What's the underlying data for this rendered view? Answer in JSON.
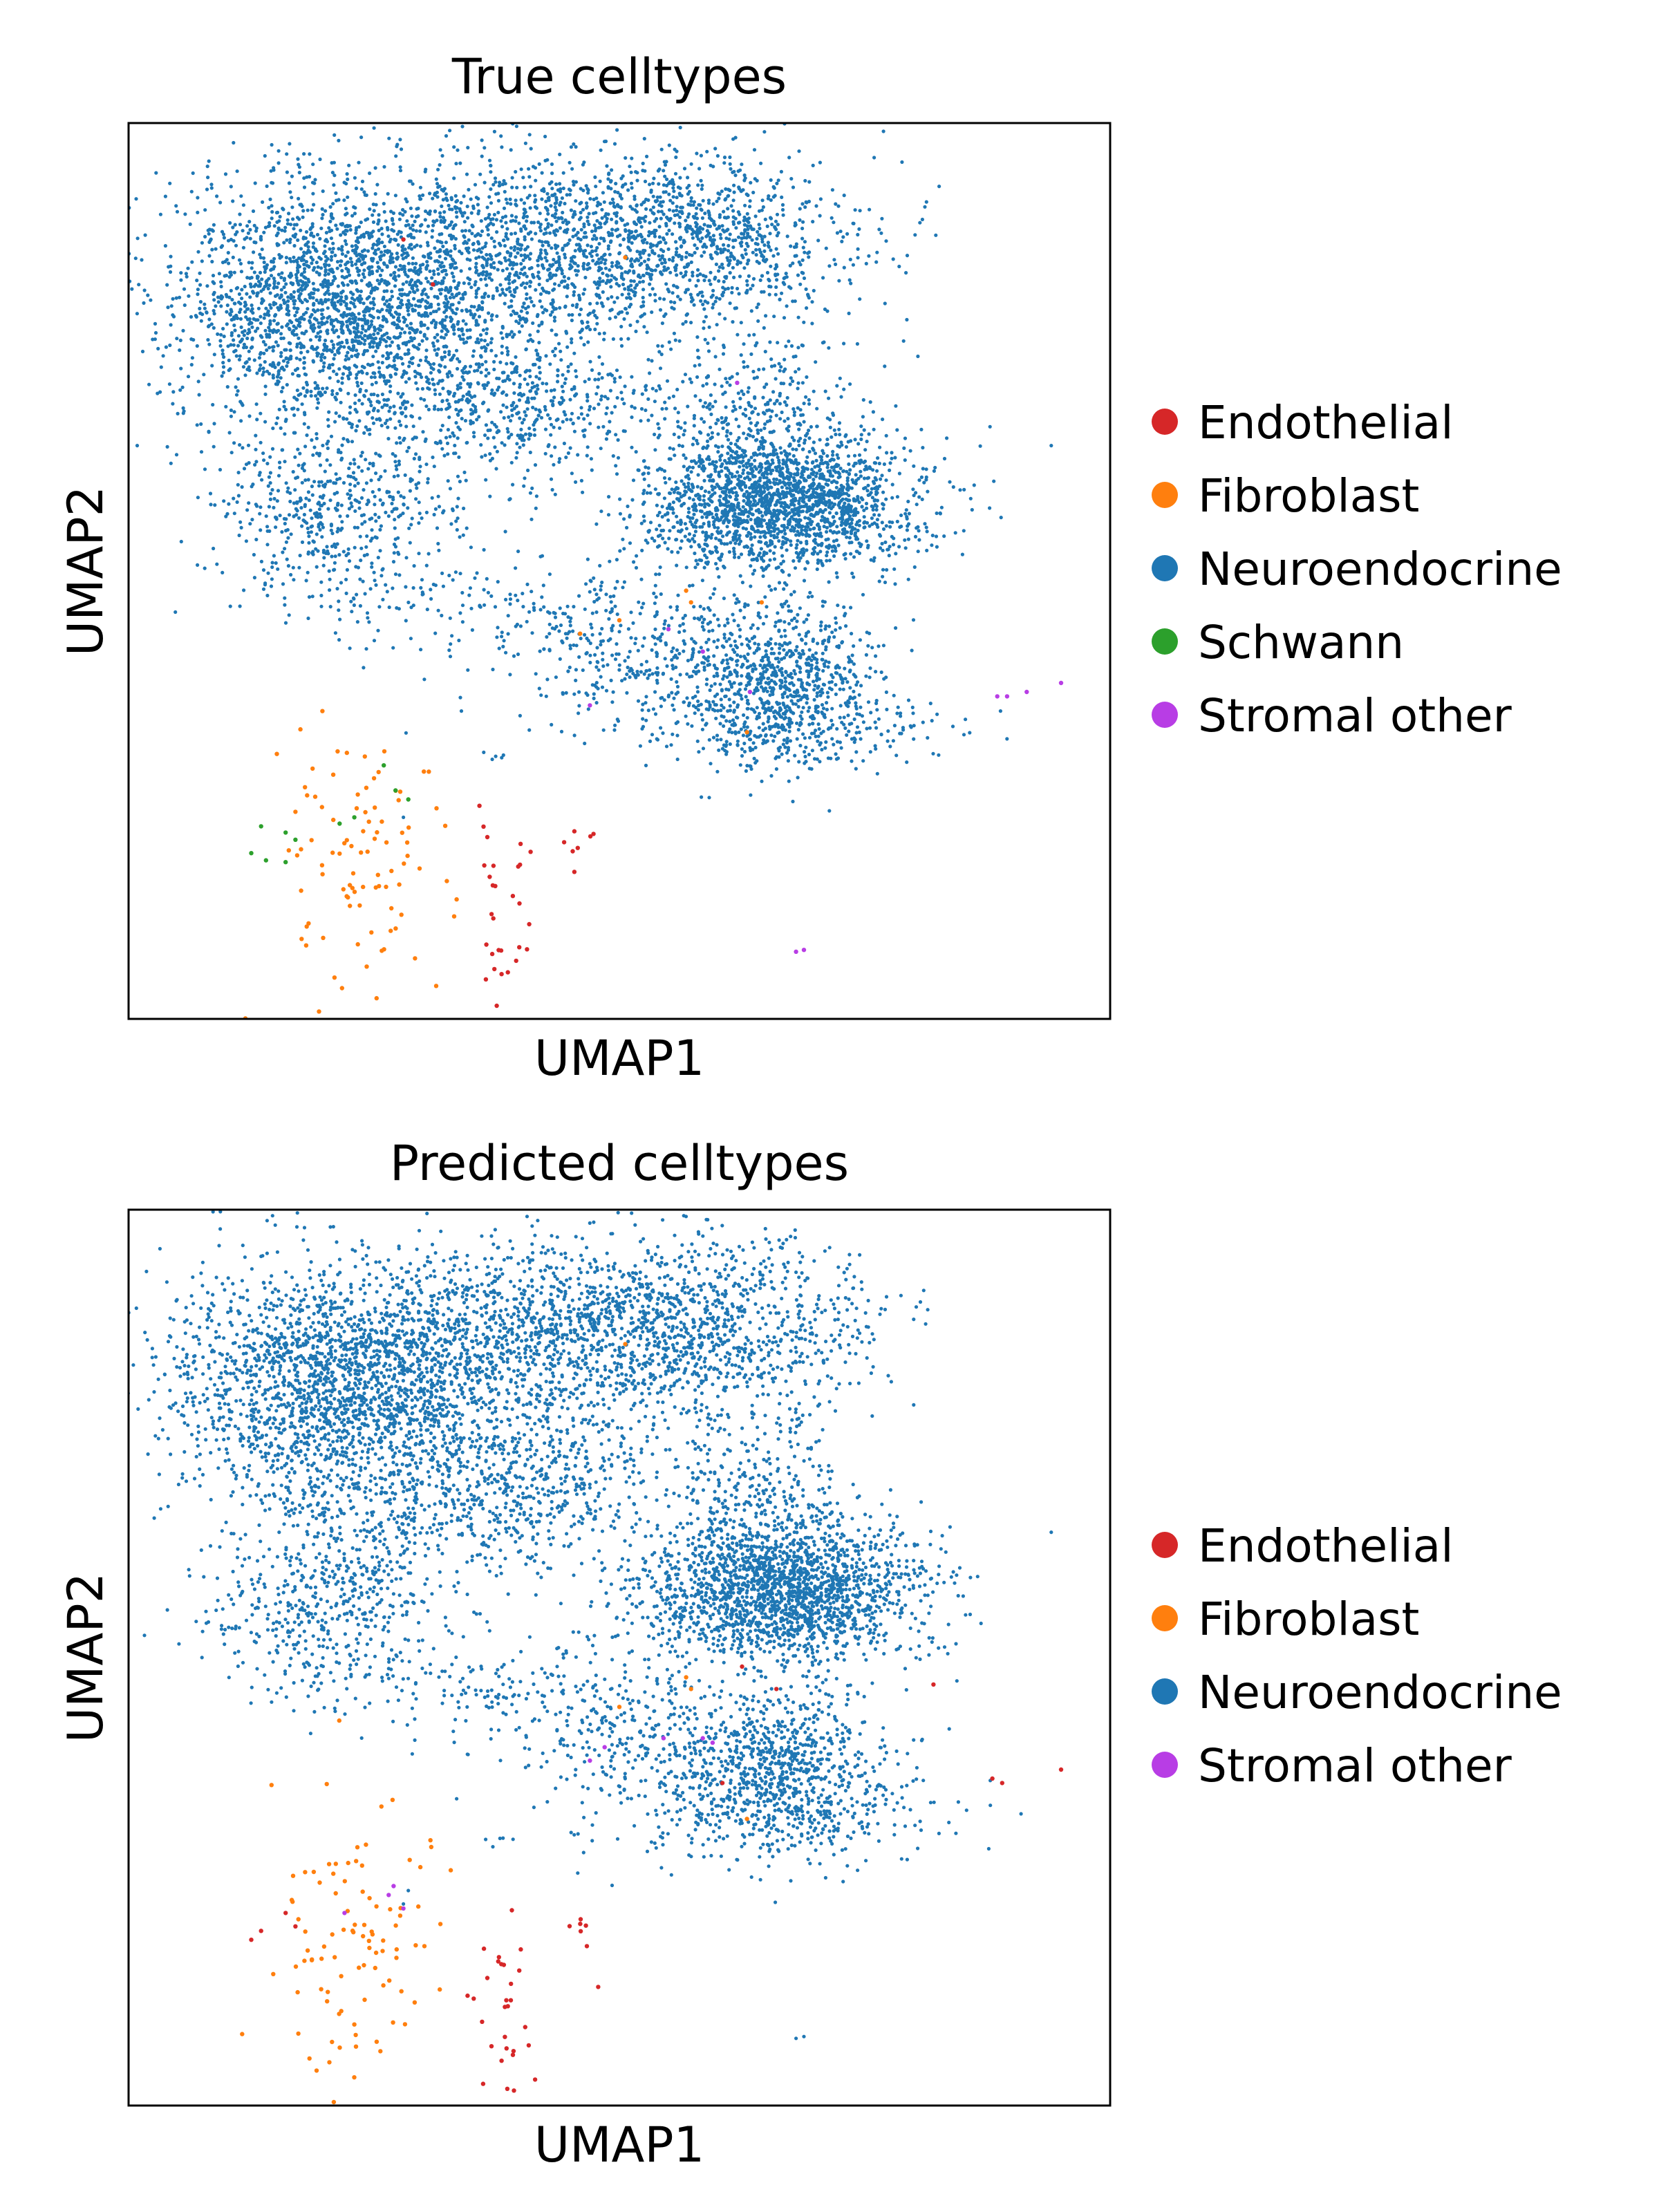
{
  "chart_data": [
    {
      "type": "scatter",
      "title": "True celltypes",
      "xlabel": "UMAP1",
      "ylabel": "UMAP2",
      "xlim": [
        0,
        100
      ],
      "ylim": [
        0,
        100
      ],
      "grid": false,
      "ticks": false,
      "legend_position": "right",
      "series": [
        {
          "name": "Endothelial",
          "color": "#d62728",
          "seed": 11,
          "clusters": [
            {
              "cx": 38.5,
              "cy": 12.5,
              "sx": 1.8,
              "sy": 5.0,
              "n": 28
            },
            {
              "cx": 46.0,
              "cy": 19.5,
              "sx": 1.8,
              "sy": 1.5,
              "n": 7
            }
          ],
          "points": [
            [
              38.0,
              5.0
            ],
            [
              28.0,
              87.0
            ],
            [
              31.0,
              82.0
            ]
          ]
        },
        {
          "name": "Fibroblast",
          "color": "#ff7f0e",
          "seed": 23,
          "clusters": [
            {
              "cx": 23.5,
              "cy": 18.0,
              "sx": 4.5,
              "sy": 8.0,
              "n": 95
            }
          ],
          "points": [
            [
              57.3,
              46.5
            ],
            [
              56.8,
              47.8
            ],
            [
              46.0,
              43.0
            ],
            [
              50.0,
              44.5
            ],
            [
              64.5,
              46.5
            ],
            [
              50.6,
              85.0
            ],
            [
              63.0,
              32.0
            ]
          ]
        },
        {
          "name": "Neuroendocrine",
          "color": "#1f77b4",
          "seed": 37,
          "clusters": [
            {
              "cx": 21.0,
              "cy": 80.0,
              "sx": 8.5,
              "sy": 7.0,
              "n": 2100
            },
            {
              "cx": 40.0,
              "cy": 85.5,
              "sx": 10.0,
              "sy": 5.5,
              "n": 1100
            },
            {
              "cx": 58.0,
              "cy": 87.0,
              "sx": 9.0,
              "sy": 5.0,
              "n": 1000
            },
            {
              "cx": 38.0,
              "cy": 69.0,
              "sx": 9.0,
              "sy": 4.5,
              "n": 650
            },
            {
              "cx": 21.0,
              "cy": 56.0,
              "sx": 6.0,
              "sy": 5.0,
              "n": 520
            },
            {
              "cx": 64.0,
              "cy": 67.0,
              "sx": 5.0,
              "sy": 5.5,
              "n": 350
            },
            {
              "cx": 66.5,
              "cy": 57.5,
              "sx": 7.0,
              "sy": 3.8,
              "n": 1900
            },
            {
              "cx": 66.5,
              "cy": 37.5,
              "sx": 5.0,
              "sy": 4.5,
              "n": 800
            },
            {
              "cx": 52.0,
              "cy": 41.5,
              "sx": 6.5,
              "sy": 5.0,
              "n": 340
            },
            {
              "cx": 67.0,
              "cy": 32.5,
              "sx": 9.0,
              "sy": 2.2,
              "n": 200
            },
            {
              "cx": 37.0,
              "cy": 46.0,
              "sx": 9.0,
              "sy": 3.0,
              "n": 150
            },
            {
              "cx": 8.0,
              "cy": 88.0,
              "sx": 0.4,
              "sy": 0.4,
              "n": 4
            },
            {
              "cx": 37.5,
              "cy": 29.5,
              "sx": 1.0,
              "sy": 0.7,
              "n": 5
            }
          ],
          "points": [
            [
              94.0,
              64.0
            ],
            [
              5.5,
              70.5
            ],
            [
              28.0,
              22.5
            ],
            [
              41.5,
              57.0
            ],
            [
              76.5,
              62.0
            ]
          ]
        },
        {
          "name": "Schwann",
          "color": "#2ca02c",
          "seed": 41,
          "clusters": [],
          "points": [
            [
              13.5,
              21.5
            ],
            [
              16.0,
              20.8
            ],
            [
              17.0,
              20.0
            ],
            [
              12.5,
              18.5
            ],
            [
              16.0,
              17.5
            ],
            [
              14.0,
              17.7
            ],
            [
              23.0,
              22.5
            ],
            [
              21.5,
              21.8
            ],
            [
              26.0,
              28.3
            ],
            [
              27.2,
              25.5
            ],
            [
              28.5,
              24.5
            ]
          ]
        },
        {
          "name": "Stromal other",
          "color": "#b83de5",
          "seed": 53,
          "clusters": [],
          "points": [
            [
              91.5,
              36.5
            ],
            [
              89.5,
              36.0
            ],
            [
              88.5,
              36.0
            ],
            [
              95.0,
              37.5
            ],
            [
              68.0,
              7.5
            ],
            [
              68.8,
              7.7
            ],
            [
              47.0,
              35.0
            ],
            [
              58.5,
              41.0
            ],
            [
              55.0,
              43.5
            ],
            [
              62.0,
              71.0
            ],
            [
              63.3,
              36.5
            ]
          ]
        }
      ]
    },
    {
      "type": "scatter",
      "title": "Predicted celltypes",
      "xlabel": "UMAP1",
      "ylabel": "UMAP2",
      "xlim": [
        0,
        100
      ],
      "ylim": [
        0,
        100
      ],
      "grid": false,
      "ticks": false,
      "legend_position": "right",
      "series": [
        {
          "name": "Endothelial",
          "color": "#d62728",
          "seed": 111,
          "clusters": [
            {
              "cx": 38.5,
              "cy": 12.5,
              "sx": 1.8,
              "sy": 5.0,
              "n": 28
            },
            {
              "cx": 46.0,
              "cy": 19.5,
              "sx": 1.8,
              "sy": 1.5,
              "n": 7
            }
          ],
          "points": [
            [
              38.0,
              5.0
            ],
            [
              13.5,
              19.5
            ],
            [
              16.0,
              21.5
            ],
            [
              17.0,
              20.0
            ],
            [
              12.5,
              18.5
            ],
            [
              89.0,
              36.0
            ],
            [
              88.0,
              36.5
            ],
            [
              95.0,
              37.5
            ],
            [
              82.0,
              47.0
            ],
            [
              66.0,
              46.5
            ],
            [
              60.5,
              36.0
            ],
            [
              62.5,
              49.0
            ]
          ]
        },
        {
          "name": "Fibroblast",
          "color": "#ff7f0e",
          "seed": 123,
          "clusters": [
            {
              "cx": 23.5,
              "cy": 18.0,
              "sx": 4.5,
              "sy": 8.0,
              "n": 98
            }
          ],
          "points": [
            [
              57.3,
              46.5
            ],
            [
              56.8,
              47.8
            ],
            [
              50.0,
              44.5
            ],
            [
              63.0,
              32.0
            ],
            [
              50.6,
              85.0
            ]
          ]
        },
        {
          "name": "Neuroendocrine",
          "color": "#1f77b4",
          "seed": 137,
          "clusters": [
            {
              "cx": 21.0,
              "cy": 80.0,
              "sx": 8.5,
              "sy": 7.0,
              "n": 2100
            },
            {
              "cx": 40.0,
              "cy": 85.5,
              "sx": 10.0,
              "sy": 5.5,
              "n": 1100
            },
            {
              "cx": 58.0,
              "cy": 87.0,
              "sx": 9.0,
              "sy": 5.0,
              "n": 1000
            },
            {
              "cx": 38.0,
              "cy": 69.0,
              "sx": 9.0,
              "sy": 4.5,
              "n": 650
            },
            {
              "cx": 21.0,
              "cy": 56.0,
              "sx": 6.0,
              "sy": 5.0,
              "n": 520
            },
            {
              "cx": 64.0,
              "cy": 67.0,
              "sx": 5.0,
              "sy": 5.5,
              "n": 350
            },
            {
              "cx": 66.5,
              "cy": 57.5,
              "sx": 7.0,
              "sy": 3.8,
              "n": 1900
            },
            {
              "cx": 66.5,
              "cy": 37.5,
              "sx": 5.0,
              "sy": 4.5,
              "n": 800
            },
            {
              "cx": 52.0,
              "cy": 41.5,
              "sx": 6.5,
              "sy": 5.0,
              "n": 340
            },
            {
              "cx": 67.0,
              "cy": 32.5,
              "sx": 9.0,
              "sy": 2.2,
              "n": 200
            },
            {
              "cx": 37.0,
              "cy": 46.0,
              "sx": 9.0,
              "sy": 3.0,
              "n": 150
            },
            {
              "cx": 8.0,
              "cy": 88.0,
              "sx": 0.4,
              "sy": 0.4,
              "n": 4
            },
            {
              "cx": 37.5,
              "cy": 29.5,
              "sx": 1.0,
              "sy": 0.7,
              "n": 5
            }
          ],
          "points": [
            [
              94.0,
              64.0
            ],
            [
              5.5,
              70.5
            ],
            [
              28.0,
              22.5
            ],
            [
              28.5,
              24.0
            ],
            [
              68.0,
              7.5
            ],
            [
              68.8,
              7.7
            ],
            [
              41.5,
              57.0
            ],
            [
              76.5,
              62.0
            ]
          ]
        },
        {
          "name": "Stromal other",
          "color": "#b83de5",
          "seed": 153,
          "clusters": [],
          "points": [
            [
              27.0,
              24.5
            ],
            [
              26.5,
              23.5
            ],
            [
              22.0,
              21.5
            ],
            [
              28.0,
              22.0
            ],
            [
              54.5,
              41.0
            ],
            [
              58.5,
              41.0
            ],
            [
              47.0,
              38.5
            ],
            [
              48.5,
              40.0
            ],
            [
              59.5,
              40.5
            ]
          ]
        }
      ]
    }
  ]
}
